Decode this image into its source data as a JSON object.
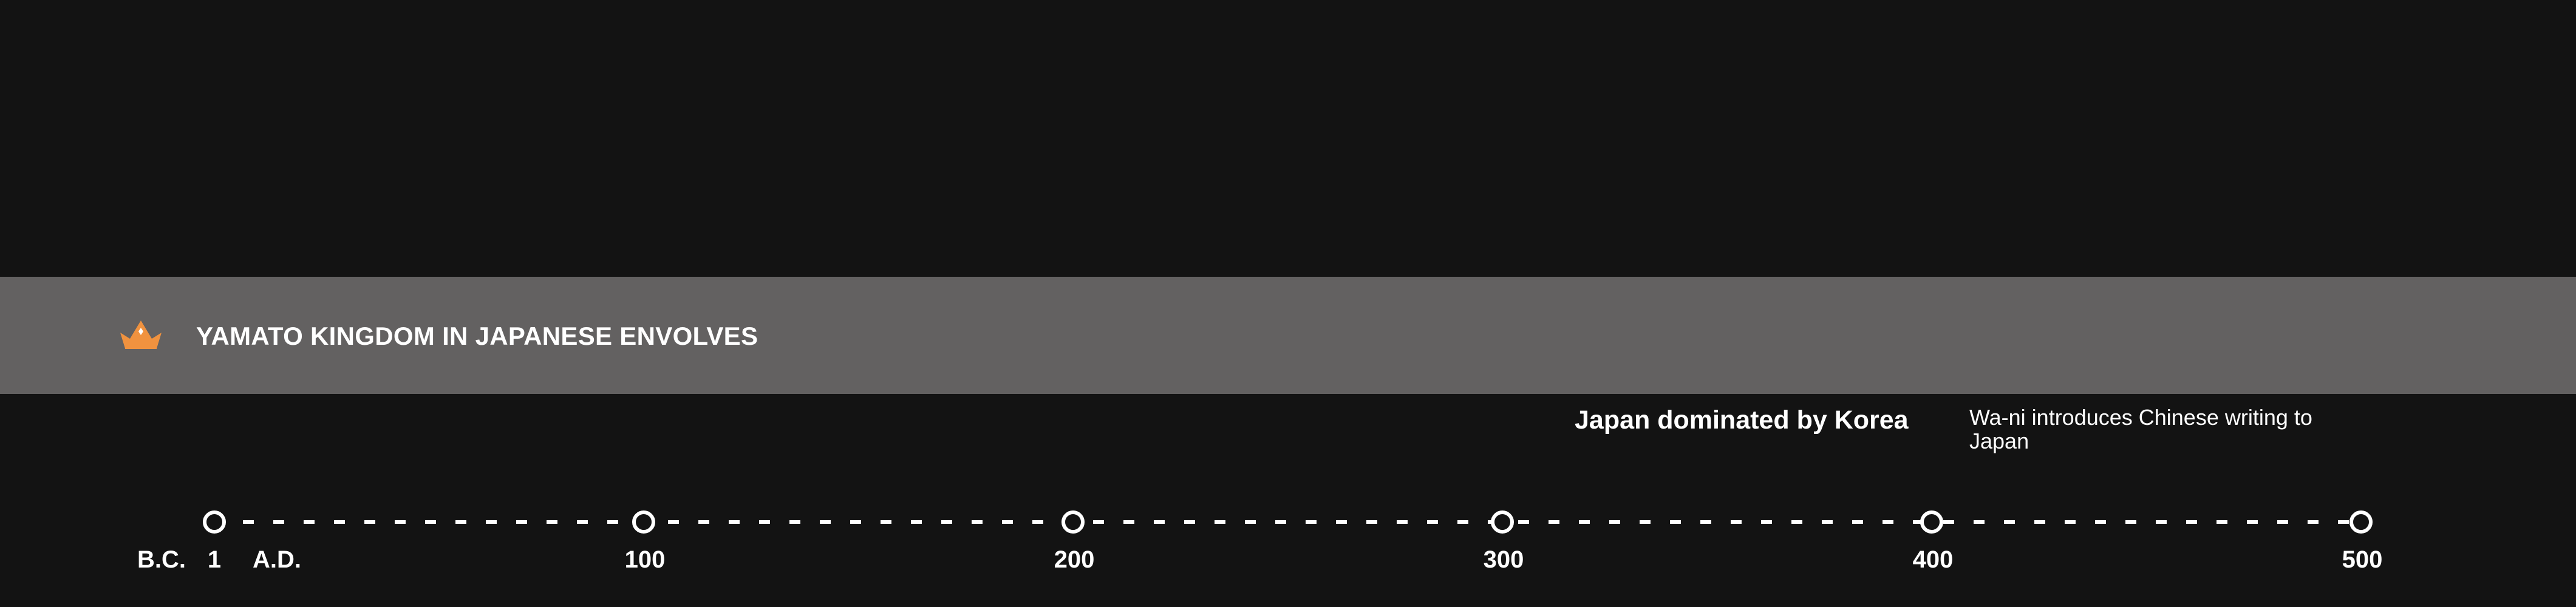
{
  "band": {
    "title": "YAMATO KINGDOM IN JAPANESE ENVOLVES",
    "icon": "crown-icon",
    "icon_color": "#f0923f",
    "background": "#636161"
  },
  "events": [
    {
      "text": "Japan dominated by Korea"
    },
    {
      "text": "Wa-ni introduces Chinese writing to Japan"
    }
  ],
  "timeline": {
    "era_before": "B.C.",
    "era_after": "A.D.",
    "ticks": [
      "1",
      "100",
      "200",
      "300",
      "400",
      "500"
    ]
  }
}
